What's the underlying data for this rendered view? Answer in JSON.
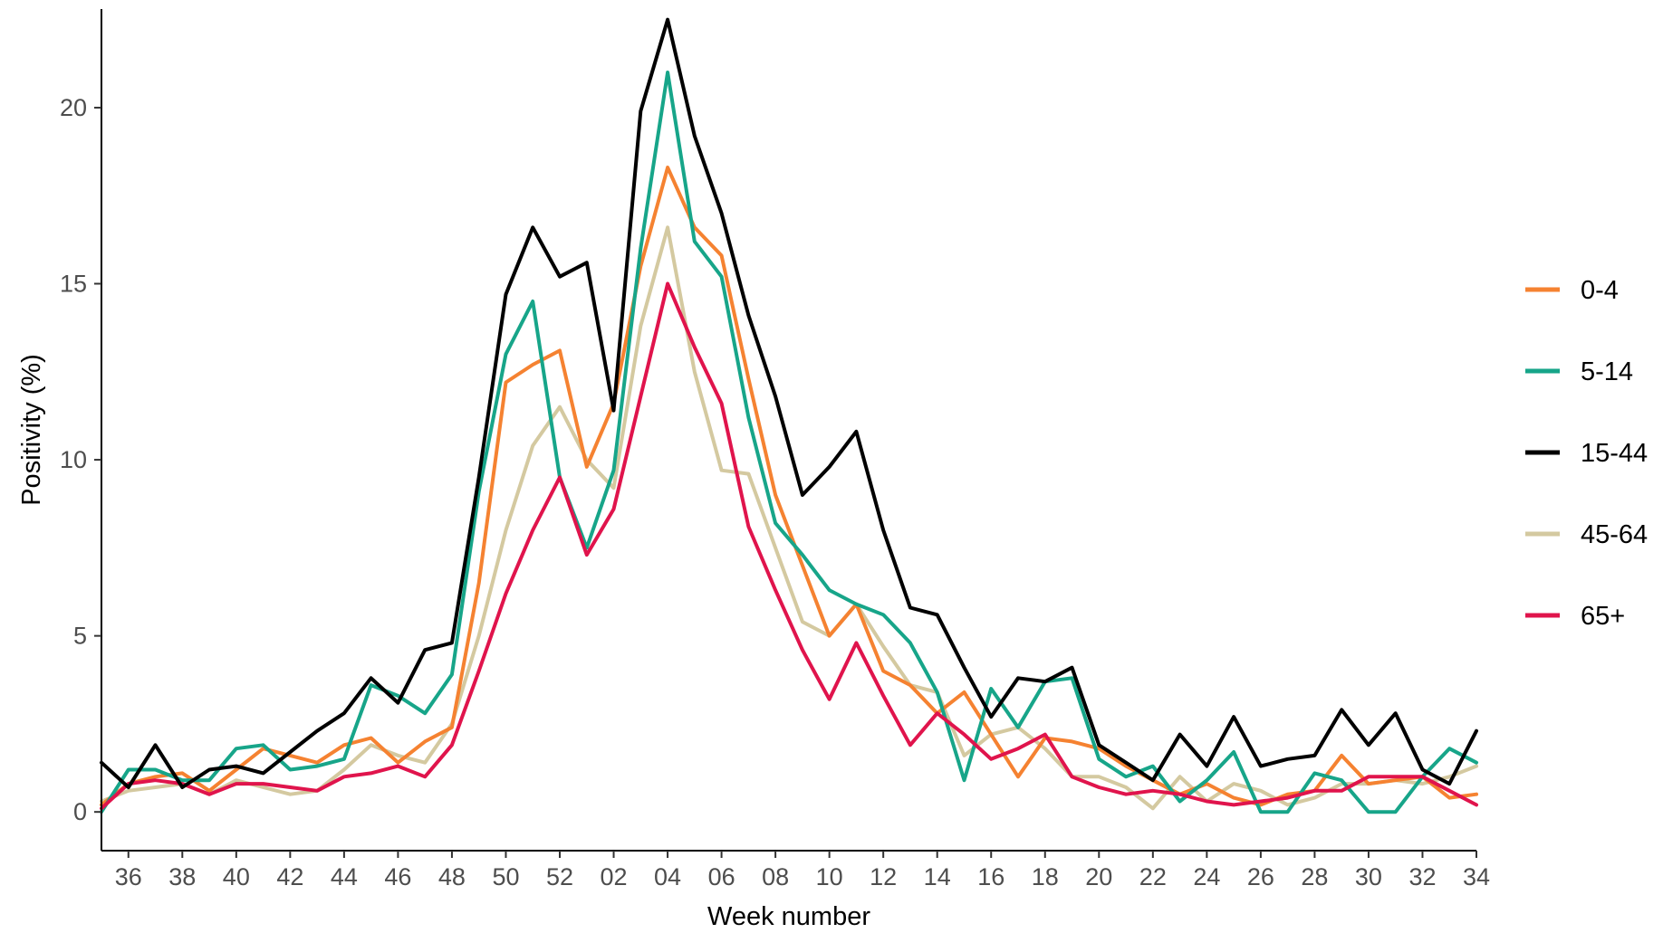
{
  "chart_data": {
    "type": "line",
    "xlabel": "Week number",
    "ylabel": "Positivity (%)",
    "ylim": [
      -1.1,
      22.8
    ],
    "y_ticks": [
      0,
      5,
      10,
      15,
      20
    ],
    "x": [
      "35",
      "36",
      "37",
      "38",
      "39",
      "40",
      "41",
      "42",
      "43",
      "44",
      "45",
      "46",
      "47",
      "48",
      "49",
      "50",
      "51",
      "52",
      "01",
      "02",
      "03",
      "04",
      "05",
      "06",
      "07",
      "08",
      "09",
      "10",
      "11",
      "12",
      "13",
      "14",
      "15",
      "16",
      "17",
      "18",
      "19",
      "20",
      "21",
      "22",
      "23",
      "24",
      "25",
      "26",
      "27",
      "28",
      "29",
      "30",
      "31",
      "32",
      "33",
      "34"
    ],
    "x_tick_labels": [
      "36",
      "38",
      "40",
      "42",
      "44",
      "46",
      "48",
      "50",
      "52",
      "02",
      "04",
      "06",
      "08",
      "10",
      "12",
      "14",
      "16",
      "18",
      "20",
      "22",
      "24",
      "26",
      "28",
      "30",
      "32",
      "34"
    ],
    "grid": false,
    "legend_position": "right",
    "series": [
      {
        "name": "0-4",
        "color": "#F58231",
        "values": [
          0.2,
          0.8,
          1.0,
          1.1,
          0.6,
          1.2,
          1.8,
          1.6,
          1.4,
          1.9,
          2.1,
          1.4,
          2.0,
          2.4,
          6.5,
          12.2,
          12.7,
          13.1,
          9.8,
          11.6,
          15.5,
          18.3,
          16.6,
          15.8,
          12.3,
          9.0,
          7.0,
          5.0,
          5.9,
          4.0,
          3.6,
          2.8,
          3.4,
          2.2,
          1.0,
          2.1,
          2.0,
          1.8,
          1.3,
          0.9,
          0.5,
          0.8,
          0.4,
          0.2,
          0.5,
          0.6,
          1.6,
          0.8,
          0.9,
          1.0,
          0.4,
          0.5
        ]
      },
      {
        "name": "5-14",
        "color": "#17A589",
        "values": [
          0.0,
          1.2,
          1.2,
          0.9,
          0.9,
          1.8,
          1.9,
          1.2,
          1.3,
          1.5,
          3.6,
          3.3,
          2.8,
          3.9,
          9.1,
          13.0,
          14.5,
          9.5,
          7.5,
          9.7,
          16.0,
          21.0,
          16.2,
          15.2,
          11.2,
          8.2,
          7.3,
          6.3,
          5.9,
          5.6,
          4.8,
          3.4,
          0.9,
          3.5,
          2.4,
          3.7,
          3.8,
          1.5,
          1.0,
          1.3,
          0.3,
          0.9,
          1.7,
          0.0,
          0.0,
          1.1,
          0.9,
          0.0,
          0.0,
          1.0,
          1.8,
          1.4
        ]
      },
      {
        "name": "15-44",
        "color": "#000000",
        "values": [
          1.4,
          0.7,
          1.9,
          0.7,
          1.2,
          1.3,
          1.1,
          1.7,
          2.3,
          2.8,
          3.8,
          3.1,
          4.6,
          4.8,
          9.5,
          14.7,
          16.6,
          15.2,
          15.6,
          11.4,
          19.9,
          22.5,
          19.2,
          17.0,
          14.1,
          11.8,
          9.0,
          9.8,
          10.8,
          8.0,
          5.8,
          5.6,
          4.1,
          2.7,
          3.8,
          3.7,
          4.1,
          1.9,
          1.4,
          0.9,
          2.2,
          1.3,
          2.7,
          1.3,
          1.5,
          1.6,
          2.9,
          1.9,
          2.8,
          1.2,
          0.8,
          2.3
        ]
      },
      {
        "name": "45-64",
        "color": "#D4C9A0",
        "values": [
          0.3,
          0.6,
          0.7,
          0.8,
          0.5,
          0.9,
          0.7,
          0.5,
          0.6,
          1.2,
          1.9,
          1.6,
          1.4,
          2.5,
          5.0,
          8.0,
          10.4,
          11.5,
          10.0,
          9.2,
          13.8,
          16.6,
          12.5,
          9.7,
          9.6,
          7.5,
          5.4,
          5.0,
          5.9,
          4.7,
          3.6,
          3.4,
          1.6,
          2.2,
          2.4,
          1.8,
          1.0,
          1.0,
          0.7,
          0.1,
          1.0,
          0.3,
          0.8,
          0.6,
          0.2,
          0.4,
          0.8,
          0.8,
          0.9,
          0.8,
          1.0,
          1.3
        ]
      },
      {
        "name": "65+",
        "color": "#E0144C",
        "values": [
          0.1,
          0.8,
          0.9,
          0.8,
          0.5,
          0.8,
          0.8,
          0.7,
          0.6,
          1.0,
          1.1,
          1.3,
          1.0,
          1.9,
          4.0,
          6.2,
          8.0,
          9.5,
          7.3,
          8.6,
          11.8,
          15.0,
          13.2,
          11.6,
          8.1,
          6.3,
          4.6,
          3.2,
          4.8,
          3.3,
          1.9,
          2.8,
          2.2,
          1.5,
          1.8,
          2.2,
          1.0,
          0.7,
          0.5,
          0.6,
          0.5,
          0.3,
          0.2,
          0.3,
          0.4,
          0.6,
          0.6,
          1.0,
          1.0,
          1.0,
          0.6,
          0.2
        ]
      }
    ]
  }
}
